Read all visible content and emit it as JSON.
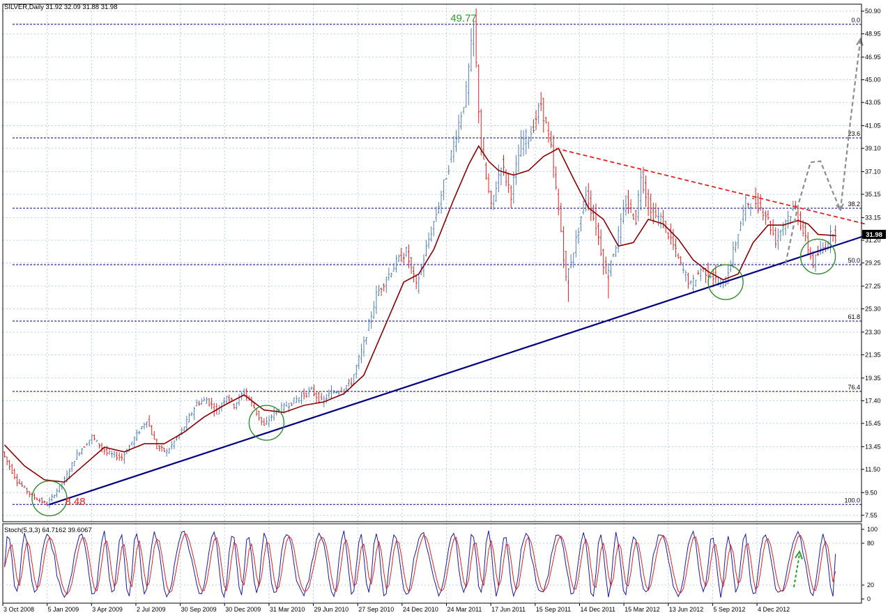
{
  "header": {
    "main": "SILVER,Daily  31.92 32.09 31.88 31.98",
    "stoch": "Stoch(5,3,3) 64.7162 39.6067"
  },
  "chart_data": {
    "type": "candlestick",
    "symbol": "SILVER",
    "timeframe": "Daily",
    "ohlc_last": {
      "open": 31.92,
      "high": 32.09,
      "low": 31.88,
      "close": 31.98
    },
    "current_price": "31.98",
    "ylim": [
      7.0,
      51.5
    ],
    "y_ticks": [
      "50.90",
      "48.95",
      "46.95",
      "45.00",
      "43.05",
      "41.05",
      "39.10",
      "37.10",
      "35.15",
      "33.15",
      "31.20",
      "29.25",
      "27.25",
      "25.30",
      "23.30",
      "21.35",
      "19.35",
      "17.40",
      "15.45",
      "13.45",
      "11.50",
      "9.50",
      "7.55"
    ],
    "x_ticks": [
      "3 Oct 2008",
      "5 Jan 2009",
      "3 Apr 2009",
      "2 Jul 2009",
      "30 Sep 2009",
      "30 Dec 2009",
      "31 Mar 2010",
      "29 Jun 2010",
      "27 Sep 2010",
      "24 Dec 2010",
      "24 Mar 2011",
      "17 Jun 2011",
      "15 Sep 2011",
      "14 Dec 2011",
      "15 Mar 2012",
      "13 Jun 2012",
      "5 Sep 2012",
      "4 Dec 2012"
    ],
    "price_path": [
      [
        0,
        13.0
      ],
      [
        6,
        10.5
      ],
      [
        12,
        9.2
      ],
      [
        18,
        8.48
      ],
      [
        25,
        10.6
      ],
      [
        30,
        12.8
      ],
      [
        36,
        14.3
      ],
      [
        42,
        12.9
      ],
      [
        48,
        12.5
      ],
      [
        54,
        14.5
      ],
      [
        58,
        15.8
      ],
      [
        62,
        13.4
      ],
      [
        66,
        13.0
      ],
      [
        72,
        14.8
      ],
      [
        78,
        17.2
      ],
      [
        82,
        17.5
      ],
      [
        86,
        16.5
      ],
      [
        90,
        17.9
      ],
      [
        93,
        17.0
      ],
      [
        97,
        18.2
      ],
      [
        101,
        16.8
      ],
      [
        105,
        15.2
      ],
      [
        109,
        16.4
      ],
      [
        114,
        17.0
      ],
      [
        120,
        17.8
      ],
      [
        124,
        18.3
      ],
      [
        128,
        17.3
      ],
      [
        132,
        18.1
      ],
      [
        136,
        18.4
      ],
      [
        140,
        19.0
      ],
      [
        145,
        22.3
      ],
      [
        150,
        26.5
      ],
      [
        153,
        27.6
      ],
      [
        158,
        29.3
      ],
      [
        162,
        30.2
      ],
      [
        166,
        27.2
      ],
      [
        170,
        30.5
      ],
      [
        174,
        33.5
      ],
      [
        178,
        36.8
      ],
      [
        182,
        40.4
      ],
      [
        186,
        43.9
      ],
      [
        189,
        49.77
      ],
      [
        192,
        39.0
      ],
      [
        196,
        34.0
      ],
      [
        200,
        37.8
      ],
      [
        204,
        35.2
      ],
      [
        208,
        39.6
      ],
      [
        212,
        40.5
      ],
      [
        216,
        43.0
      ],
      [
        220,
        39.0
      ],
      [
        224,
        32.0
      ],
      [
        226,
        27.8
      ],
      [
        230,
        31.2
      ],
      [
        234,
        35.3
      ],
      [
        238,
        32.5
      ],
      [
        242,
        28.2
      ],
      [
        246,
        30.8
      ],
      [
        250,
        34.5
      ],
      [
        254,
        33.0
      ],
      [
        256,
        36.9
      ],
      [
        260,
        33.5
      ],
      [
        264,
        33.0
      ],
      [
        268,
        31.3
      ],
      [
        272,
        29.0
      ],
      [
        276,
        27.3
      ],
      [
        280,
        28.7
      ],
      [
        284,
        28.3
      ],
      [
        288,
        27.3
      ],
      [
        290,
        27.8
      ],
      [
        294,
        31.0
      ],
      [
        298,
        34.4
      ],
      [
        302,
        34.5
      ],
      [
        306,
        33.5
      ],
      [
        310,
        31.2
      ],
      [
        314,
        33.0
      ],
      [
        318,
        34.0
      ],
      [
        322,
        31.2
      ],
      [
        325,
        29.2
      ],
      [
        327,
        30.0
      ],
      [
        330,
        30.8
      ],
      [
        333,
        31.98
      ]
    ],
    "moving_average": [
      [
        0,
        13.6
      ],
      [
        8,
        11.8
      ],
      [
        16,
        10.6
      ],
      [
        24,
        10.4
      ],
      [
        32,
        11.9
      ],
      [
        40,
        13.4
      ],
      [
        48,
        13.0
      ],
      [
        56,
        13.7
      ],
      [
        64,
        13.7
      ],
      [
        72,
        14.7
      ],
      [
        80,
        16.0
      ],
      [
        88,
        17.0
      ],
      [
        96,
        17.9
      ],
      [
        104,
        16.6
      ],
      [
        112,
        16.4
      ],
      [
        120,
        17.0
      ],
      [
        128,
        17.3
      ],
      [
        136,
        18.0
      ],
      [
        144,
        19.6
      ],
      [
        152,
        23.6
      ],
      [
        160,
        27.6
      ],
      [
        166,
        28.3
      ],
      [
        172,
        30.4
      ],
      [
        180,
        34.7
      ],
      [
        186,
        37.7
      ],
      [
        190,
        39.3
      ],
      [
        194,
        38.0
      ],
      [
        198,
        37.2
      ],
      [
        204,
        36.8
      ],
      [
        210,
        37.2
      ],
      [
        216,
        38.4
      ],
      [
        222,
        39.1
      ],
      [
        228,
        36.5
      ],
      [
        234,
        34.0
      ],
      [
        240,
        33.0
      ],
      [
        246,
        30.7
      ],
      [
        252,
        31.0
      ],
      [
        258,
        33.0
      ],
      [
        264,
        32.6
      ],
      [
        270,
        31.3
      ],
      [
        276,
        29.5
      ],
      [
        282,
        28.5
      ],
      [
        288,
        27.8
      ],
      [
        294,
        28.3
      ],
      [
        300,
        31.0
      ],
      [
        306,
        32.5
      ],
      [
        312,
        32.5
      ],
      [
        318,
        32.9
      ],
      [
        322,
        32.6
      ],
      [
        326,
        31.7
      ],
      [
        333,
        31.6
      ]
    ],
    "annotations": {
      "high_label": "49.77",
      "low_label": "8.48",
      "high_value": 49.77,
      "low_value": 8.48,
      "fibonacci": [
        {
          "label": "0.0",
          "value": 49.77
        },
        {
          "label": "23.6",
          "value": 40.0
        },
        {
          "label": "38.2",
          "value": 33.95
        },
        {
          "label": "50.0",
          "value": 29.1
        },
        {
          "label": "61.8",
          "value": 24.25
        },
        {
          "label": "76.4",
          "value": 18.2
        },
        {
          "label": "100.0",
          "value": 8.48
        }
      ],
      "support_trendline": {
        "from": [
          18,
          8.48
        ],
        "to": [
          345,
          31.6
        ]
      },
      "resistance_trendline": {
        "from": [
          221,
          39.1
        ],
        "to": [
          345,
          32.6
        ]
      },
      "support_circles": [
        [
          18,
          9.0
        ],
        [
          105,
          15.5
        ],
        [
          289,
          27.6
        ],
        [
          326,
          29.8
        ]
      ],
      "projection_path": [
        [
          313,
          29.2
        ],
        [
          318,
          34.2
        ],
        [
          323,
          37.9
        ],
        [
          327,
          38.0
        ],
        [
          332,
          35.3
        ],
        [
          335,
          33.8
        ],
        [
          339,
          41.5
        ],
        [
          343,
          48.5
        ]
      ]
    },
    "stochastic": {
      "name": "Stoch(5,3,3)",
      "k": 64.7162,
      "d": 39.6067,
      "ylim": [
        0,
        100
      ],
      "levels_labels": [
        "100",
        "80",
        "20",
        "0"
      ],
      "levels": [
        80,
        20
      ]
    },
    "colors": {
      "up": "#4f7fb5",
      "down": "#e41f1f",
      "ma": "#8b0000",
      "support": "#000080",
      "resistance": "#e41f1f",
      "fib": "#000080",
      "circle": "#2e8b2e",
      "projection": "#8c8c8c",
      "high_label": "#2a9d2a",
      "low_label": "#e41f1f"
    }
  }
}
